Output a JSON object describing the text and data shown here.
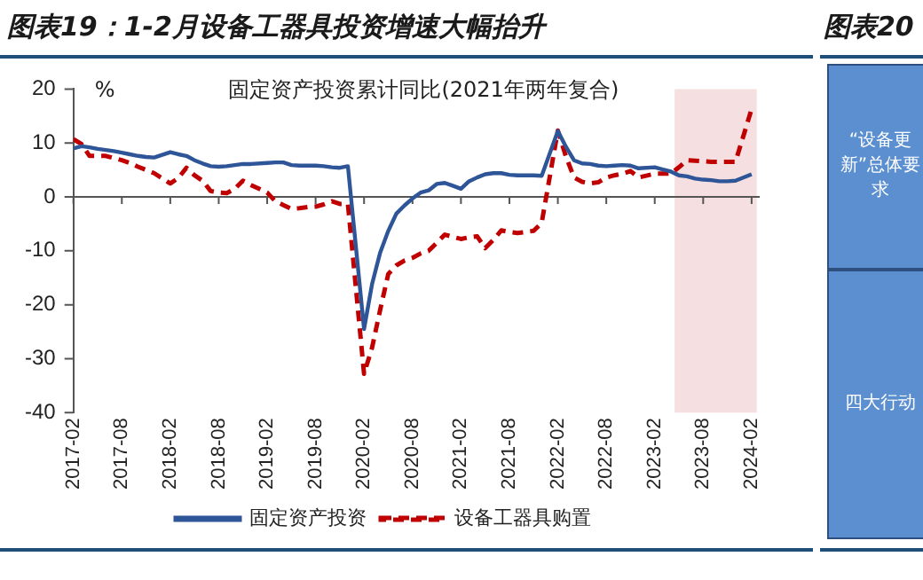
{
  "chart_data": [
    {
      "type": "line",
      "title": "图表19：1-2月设备工器具投资增速大幅抬升",
      "ylabel": "%",
      "annotations": [
        "固定资产投资累计同比(2021年两年复合)"
      ],
      "x": [
        "2017-02",
        "2017-03",
        "2017-04",
        "2017-05",
        "2017-06",
        "2017-07",
        "2017-08",
        "2017-09",
        "2017-10",
        "2017-11",
        "2017-12",
        "2018-02",
        "2018-03",
        "2018-04",
        "2018-05",
        "2018-06",
        "2018-07",
        "2018-08",
        "2018-09",
        "2018-10",
        "2018-11",
        "2018-12",
        "2019-02",
        "2019-03",
        "2019-04",
        "2019-05",
        "2019-06",
        "2019-07",
        "2019-08",
        "2019-09",
        "2019-10",
        "2019-11",
        "2019-12",
        "2020-02",
        "2020-03",
        "2020-04",
        "2020-05",
        "2020-06",
        "2020-07",
        "2020-08",
        "2020-09",
        "2020-10",
        "2020-11",
        "2020-12",
        "2021-02",
        "2021-03",
        "2021-04",
        "2021-05",
        "2021-06",
        "2021-07",
        "2021-08",
        "2021-09",
        "2021-10",
        "2021-11",
        "2021-12",
        "2022-02",
        "2022-03",
        "2022-04",
        "2022-05",
        "2022-06",
        "2022-07",
        "2022-08",
        "2022-09",
        "2022-10",
        "2022-11",
        "2022-12",
        "2023-02",
        "2023-03",
        "2023-04",
        "2023-05",
        "2023-06",
        "2023-07",
        "2023-08",
        "2023-09",
        "2023-10",
        "2023-11",
        "2023-12",
        "2024-02"
      ],
      "series": [
        {
          "name": "固定资产投资",
          "color": "#2e5597",
          "line_style": "solid",
          "values": [
            9.0,
            9.4,
            9.2,
            8.9,
            8.7,
            8.5,
            8.2,
            7.9,
            7.6,
            7.4,
            7.3,
            8.3,
            7.9,
            7.6,
            6.8,
            6.2,
            5.7,
            5.6,
            5.7,
            5.9,
            6.1,
            6.1,
            6.3,
            6.4,
            6.4,
            5.9,
            5.8,
            5.8,
            5.8,
            5.7,
            5.5,
            5.4,
            5.7,
            -24.5,
            -16.1,
            -10.3,
            -6.3,
            -3.1,
            -1.6,
            -0.3,
            0.8,
            1.2,
            2.4,
            2.6,
            1.5,
            2.9,
            3.6,
            4.2,
            4.4,
            4.4,
            4.1,
            4.0,
            4.0,
            4.0,
            3.9,
            12.2,
            9.3,
            6.8,
            6.2,
            6.1,
            5.8,
            5.7,
            5.8,
            5.9,
            5.8,
            5.3,
            5.5,
            5.1,
            4.7,
            4.0,
            3.8,
            3.4,
            3.2,
            3.1,
            2.9,
            2.9,
            3.0,
            4.2
          ]
        },
        {
          "name": "设备工器具购置",
          "color": "#c00000",
          "line_style": "dashed",
          "values": [
            10.7,
            9.8,
            7.6,
            7.6,
            7.6,
            7.2,
            6.8,
            6.3,
            5.6,
            5.0,
            4.4,
            2.5,
            3.5,
            5.4,
            4.0,
            3.0,
            1.1,
            0.8,
            0.7,
            1.5,
            3.0,
            2.2,
            0.8,
            -0.8,
            -1.5,
            -2.2,
            -2.1,
            -1.9,
            -1.8,
            -1.4,
            -0.8,
            -1.3,
            -1.3,
            -32.8,
            -27.9,
            -20.9,
            -14.3,
            -12.7,
            -11.8,
            -11.3,
            -10.5,
            -10.0,
            -8.5,
            -7.0,
            -7.8,
            -7.5,
            -7.3,
            -9.5,
            -8.0,
            -6.2,
            -6.5,
            -6.7,
            -6.5,
            -6.3,
            -4.8,
            12.3,
            7.5,
            3.6,
            2.8,
            2.5,
            2.7,
            3.6,
            4.0,
            4.3,
            4.8,
            3.6,
            4.3,
            4.3,
            4.3,
            5.5,
            6.8,
            6.7,
            6.6,
            6.5,
            6.5,
            6.5,
            6.5,
            16.3
          ]
        }
      ],
      "xlim": [
        "2017-02",
        "2024-03"
      ],
      "xticks": [
        "2017-02",
        "2017-08",
        "2018-02",
        "2018-08",
        "2019-02",
        "2019-08",
        "2020-02",
        "2020-08",
        "2021-02",
        "2021-08",
        "2022-02",
        "2022-08",
        "2023-02",
        "2023-08",
        "2024-02"
      ],
      "ylim": [
        -40,
        20
      ],
      "yticks": [
        -40,
        -30,
        -20,
        -10,
        0,
        10,
        20
      ],
      "bands": [
        {
          "axis": "x",
          "from": "2023-04-15",
          "to": "2024-02-20",
          "color": "#f6dfe0"
        }
      ],
      "ref_lines": [
        {
          "axis": "y",
          "value": 0,
          "color": "#555555",
          "line_style": "solid"
        }
      ],
      "grid": false,
      "legend": "bottom",
      "marker": "none"
    },
    {
      "type": "other",
      "title": "图表20",
      "annotations": [
        "“设备更新”总体要求",
        "四大行动"
      ]
    }
  ]
}
